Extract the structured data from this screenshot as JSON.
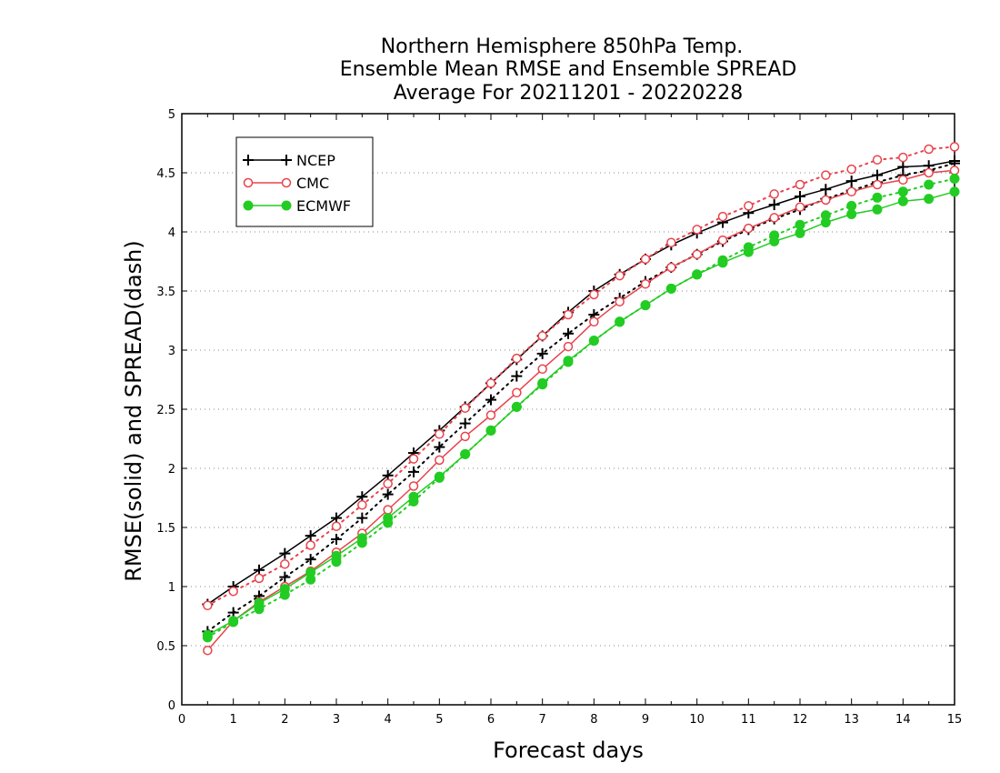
{
  "chart_data": {
    "type": "line",
    "title": [
      "Northern Hemisphere 850hPa Temp.",
      "Ensemble Mean RMSE and Ensemble SPREAD",
      "Average For 20211201 - 20220228"
    ],
    "xlabel": "Forecast days",
    "ylabel": "RMSE(solid) and SPREAD(dash)",
    "xlim": [
      0,
      15
    ],
    "ylim": [
      0,
      5
    ],
    "xticks": [
      "0",
      "1",
      "2",
      "3",
      "4",
      "5",
      "6",
      "7",
      "8",
      "9",
      "10",
      "11",
      "12",
      "13",
      "14",
      "15"
    ],
    "yticks": [
      "0",
      "0.5",
      "1",
      "1.5",
      "2",
      "2.5",
      "3",
      "3.5",
      "4",
      "4.5",
      "5"
    ],
    "grid": "horizontal-dotted",
    "legend_position": "top-left",
    "x": [
      0.5,
      1,
      1.5,
      2,
      2.5,
      3,
      3.5,
      4,
      4.5,
      5,
      5.5,
      6,
      6.5,
      7,
      7.5,
      8,
      8.5,
      9,
      9.5,
      10,
      10.5,
      11,
      11.5,
      12,
      12.5,
      13,
      13.5,
      14,
      14.5,
      15
    ],
    "series": [
      {
        "name": "NCEP",
        "color": "#000000",
        "marker": "plus",
        "rmse": [
          0.85,
          1.0,
          1.14,
          1.28,
          1.43,
          1.58,
          1.76,
          1.94,
          2.13,
          2.32,
          2.52,
          2.72,
          2.92,
          3.12,
          3.32,
          3.5,
          3.64,
          3.77,
          3.89,
          3.99,
          4.08,
          4.16,
          4.23,
          4.3,
          4.36,
          4.43,
          4.48,
          4.55,
          4.56,
          4.6
        ],
        "spread": [
          0.62,
          0.78,
          0.92,
          1.08,
          1.23,
          1.4,
          1.58,
          1.78,
          1.97,
          2.18,
          2.38,
          2.58,
          2.78,
          2.97,
          3.14,
          3.3,
          3.44,
          3.58,
          3.7,
          3.81,
          3.92,
          4.02,
          4.11,
          4.19,
          4.28,
          4.35,
          4.42,
          4.48,
          4.52,
          4.58
        ]
      },
      {
        "name": "CMC",
        "color": "#e8434b",
        "marker": "open-circle",
        "rmse": [
          0.46,
          0.71,
          0.87,
          1.0,
          1.13,
          1.29,
          1.45,
          1.65,
          1.85,
          2.07,
          2.27,
          2.45,
          2.64,
          2.84,
          3.03,
          3.24,
          3.41,
          3.56,
          3.7,
          3.81,
          3.93,
          4.03,
          4.12,
          4.21,
          4.27,
          4.34,
          4.4,
          4.44,
          4.5,
          4.52
        ],
        "spread": [
          0.84,
          0.96,
          1.07,
          1.19,
          1.35,
          1.51,
          1.69,
          1.87,
          2.08,
          2.29,
          2.51,
          2.72,
          2.93,
          3.12,
          3.3,
          3.47,
          3.63,
          3.77,
          3.91,
          4.02,
          4.13,
          4.22,
          4.32,
          4.4,
          4.48,
          4.53,
          4.61,
          4.63,
          4.7,
          4.72
        ]
      },
      {
        "name": "ECMWF",
        "color": "#22cc22",
        "marker": "filled-circle",
        "rmse": [
          0.59,
          0.71,
          0.86,
          0.98,
          1.12,
          1.26,
          1.41,
          1.58,
          1.76,
          1.93,
          2.12,
          2.32,
          2.52,
          2.72,
          2.91,
          3.08,
          3.24,
          3.38,
          3.52,
          3.64,
          3.74,
          3.83,
          3.92,
          3.99,
          4.08,
          4.15,
          4.19,
          4.26,
          4.28,
          4.34
        ],
        "spread": [
          0.57,
          0.7,
          0.81,
          0.93,
          1.06,
          1.21,
          1.37,
          1.54,
          1.72,
          1.92,
          2.12,
          2.32,
          2.52,
          2.71,
          2.9,
          3.08,
          3.24,
          3.38,
          3.52,
          3.64,
          3.76,
          3.87,
          3.97,
          4.06,
          4.14,
          4.22,
          4.29,
          4.34,
          4.4,
          4.45
        ]
      }
    ]
  }
}
